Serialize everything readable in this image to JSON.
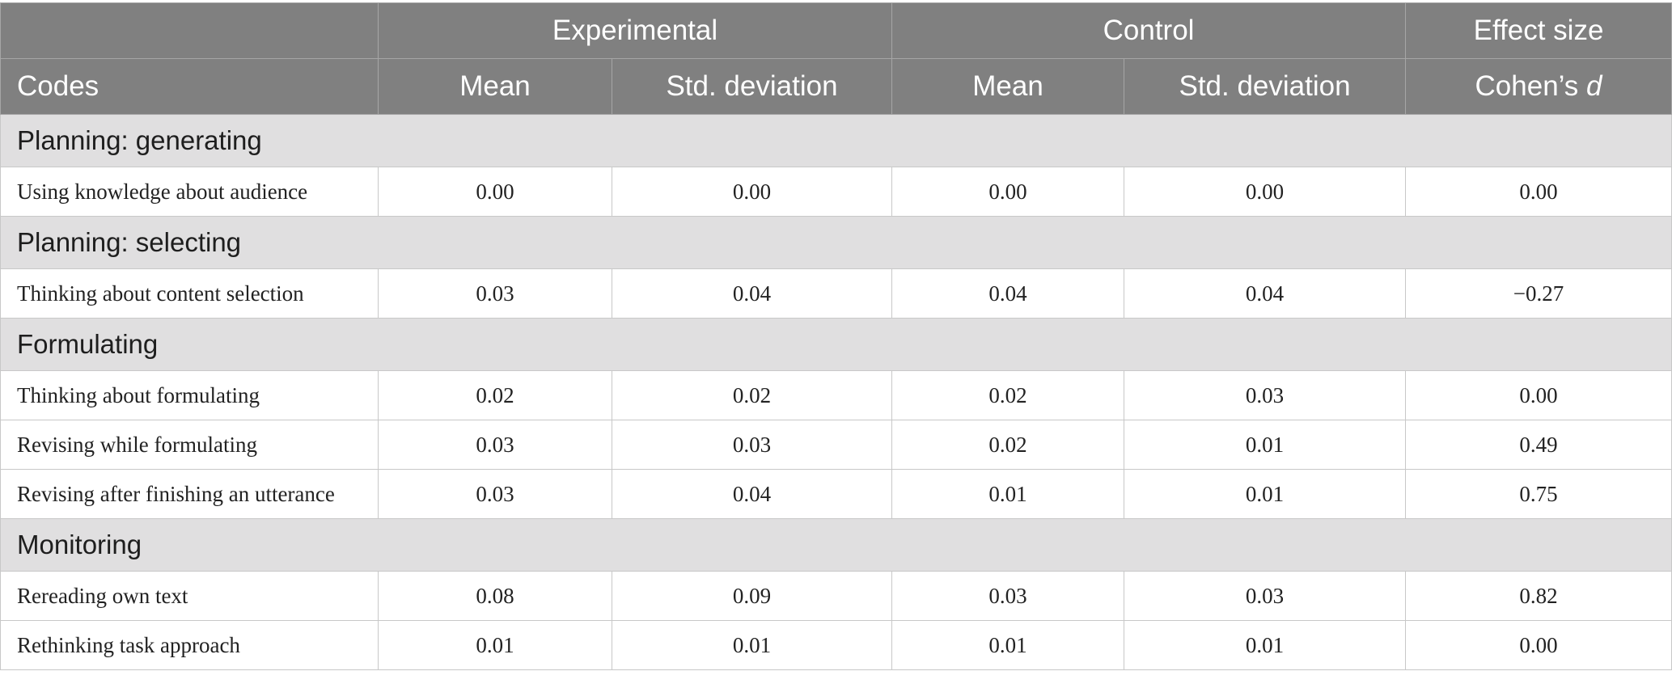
{
  "header": {
    "group_experimental": "Experimental",
    "group_control": "Control",
    "group_effect": "Effect size",
    "codes": "Codes",
    "exp_mean": "Mean",
    "exp_sd": "Std. deviation",
    "ctl_mean": "Mean",
    "ctl_sd": "Std. deviation",
    "cohen_prefix": "Cohen’s ",
    "cohen_d": "d"
  },
  "sections": [
    {
      "title": "Planning: generating",
      "rows": [
        {
          "code": "Using knowledge about audience",
          "exp_mean": "0.00",
          "exp_sd": "0.00",
          "ctl_mean": "0.00",
          "ctl_sd": "0.00",
          "d": "0.00"
        }
      ]
    },
    {
      "title": "Planning: selecting",
      "rows": [
        {
          "code": "Thinking about content selection",
          "exp_mean": "0.03",
          "exp_sd": "0.04",
          "ctl_mean": "0.04",
          "ctl_sd": "0.04",
          "d": "−0.27"
        }
      ]
    },
    {
      "title": "Formulating",
      "rows": [
        {
          "code": "Thinking about formulating",
          "exp_mean": "0.02",
          "exp_sd": "0.02",
          "ctl_mean": "0.02",
          "ctl_sd": "0.03",
          "d": "0.00"
        },
        {
          "code": "Revising while formulating",
          "exp_mean": "0.03",
          "exp_sd": "0.03",
          "ctl_mean": "0.02",
          "ctl_sd": "0.01",
          "d": "0.49"
        },
        {
          "code": "Revising after finishing an utterance",
          "exp_mean": "0.03",
          "exp_sd": "0.04",
          "ctl_mean": "0.01",
          "ctl_sd": "0.01",
          "d": "0.75"
        }
      ]
    },
    {
      "title": "Monitoring",
      "rows": [
        {
          "code": "Rereading own text",
          "exp_mean": "0.08",
          "exp_sd": "0.09",
          "ctl_mean": "0.03",
          "ctl_sd": "0.03",
          "d": "0.82"
        },
        {
          "code": "Rethinking task approach",
          "exp_mean": "0.01",
          "exp_sd": "0.01",
          "ctl_mean": "0.01",
          "ctl_sd": "0.01",
          "d": "0.00"
        }
      ]
    }
  ]
}
